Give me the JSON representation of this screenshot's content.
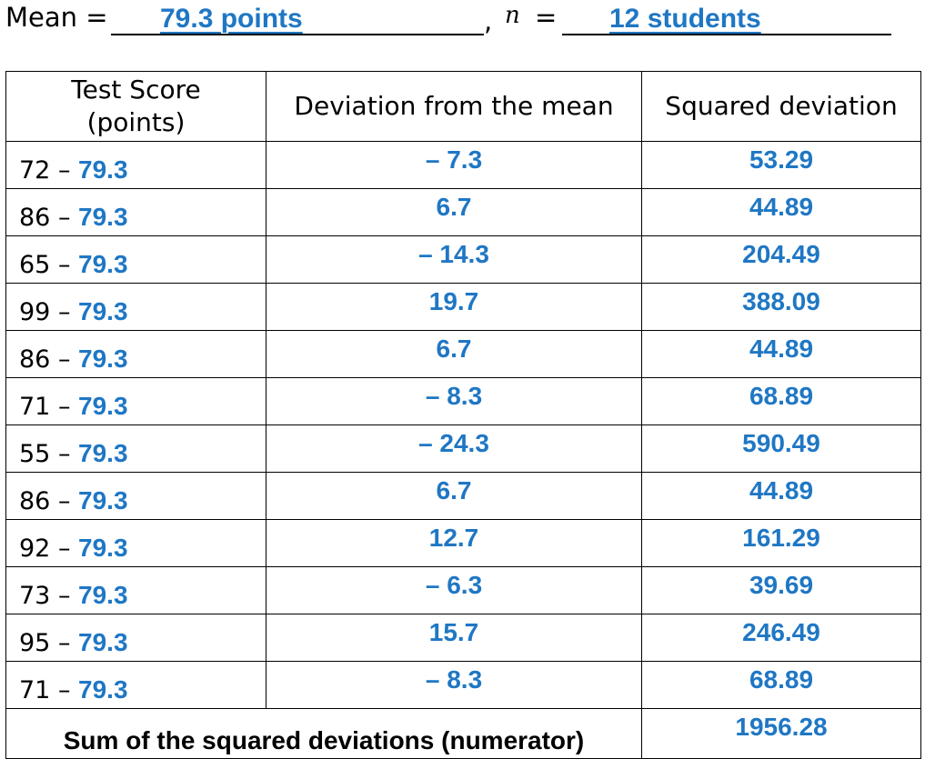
{
  "header": {
    "mean_label": "Mean =",
    "mean_value": "79.3 points",
    "separator": ",",
    "n_label": "n",
    "equals": "=",
    "n_value": "12 students"
  },
  "table": {
    "columns": [
      "Test Score\n(points)",
      "Deviation from the mean",
      "Squared deviation"
    ],
    "rows": [
      {
        "score": "72",
        "minus": " – ",
        "mean": "79.3",
        "deviation": "– 7.3",
        "squared": "53.29"
      },
      {
        "score": "86",
        "minus": " – ",
        "mean": "79.3",
        "deviation": "6.7",
        "squared": "44.89"
      },
      {
        "score": "65",
        "minus": " – ",
        "mean": "79.3",
        "deviation": "– 14.3",
        "squared": "204.49"
      },
      {
        "score": "99",
        "minus": " – ",
        "mean": "79.3",
        "deviation": "19.7",
        "squared": "388.09"
      },
      {
        "score": "86",
        "minus": " – ",
        "mean": "79.3",
        "deviation": "6.7",
        "squared": "44.89"
      },
      {
        "score": "71",
        "minus": " – ",
        "mean": "79.3",
        "deviation": "– 8.3",
        "squared": "68.89"
      },
      {
        "score": "55",
        "minus": " – ",
        "mean": "79.3",
        "deviation": "– 24.3",
        "squared": "590.49"
      },
      {
        "score": "86",
        "minus": " – ",
        "mean": "79.3",
        "deviation": "6.7",
        "squared": "44.89"
      },
      {
        "score": "92",
        "minus": " – ",
        "mean": "79.3",
        "deviation": "12.7",
        "squared": "161.29"
      },
      {
        "score": "73",
        "minus": " – ",
        "mean": "79.3",
        "deviation": "– 6.3",
        "squared": "39.69"
      },
      {
        "score": "95",
        "minus": " – ",
        "mean": "79.3",
        "deviation": "15.7",
        "squared": "246.49"
      },
      {
        "score": "71",
        "minus": " – ",
        "mean": "79.3",
        "deviation": "– 8.3",
        "squared": "68.89"
      }
    ],
    "sum_label": "Sum of the squared deviations (numerator)",
    "sum_value": "1956.28"
  },
  "colors": {
    "answer": "#1f77c4",
    "text": "#000000"
  }
}
